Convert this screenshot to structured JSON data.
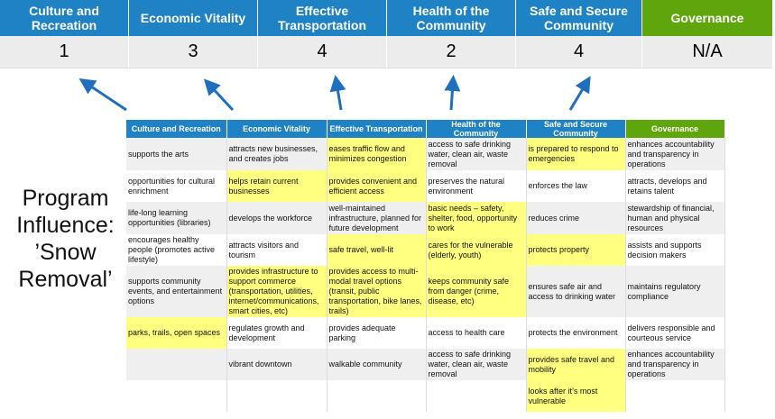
{
  "header": {
    "columns": [
      "Culture and Recreation",
      "Economic Vitality",
      "Effective Transportation",
      "Health of the Community",
      "Safe and Secure Community",
      "Governance"
    ],
    "scores": [
      "1",
      "3",
      "4",
      "2",
      "4",
      "N/A"
    ]
  },
  "title": "Program Influence: ’Snow Removal’",
  "colors": {
    "blue": "#1f82c4",
    "green": "#5fa60c",
    "highlight": "#ffff80",
    "arrow": "#1f6fbf"
  },
  "table": {
    "headers": [
      "Culture and Recreation",
      "Economic Vitality",
      "Effective Transportation",
      "Health of the Community",
      "Safe and Secure Community",
      "Governance"
    ],
    "rows": [
      {
        "cells": [
          "supports the arts",
          "attracts new businesses, and creates jobs",
          "eases traffic flow and minimizes congestion",
          "access to safe drinking water, clean air, waste removal",
          "is prepared to respond to emergencies",
          "enhances accountability and transparency in operations"
        ],
        "highlighted": [
          false,
          false,
          true,
          false,
          true,
          false
        ]
      },
      {
        "cells": [
          "opportunities for cultural enrichment",
          "helps retain current businesses",
          "provides convenient and efficient access",
          "preserves the natural environment",
          "enforces the law",
          "attracts, develops and retains talent"
        ],
        "highlighted": [
          false,
          true,
          true,
          false,
          false,
          false
        ]
      },
      {
        "cells": [
          "life-long learning opportunities (libraries)",
          "develops the workforce",
          "well-maintained infrastructure, planned for future development",
          "basic needs – safety, shelter, food, opportunity to work",
          "reduces crime",
          "stewardship of financial, human and physical resources"
        ],
        "highlighted": [
          false,
          false,
          false,
          true,
          false,
          false
        ]
      },
      {
        "cells": [
          "encourages healthy people (promotes active lifestyle)",
          "attracts visitors and tourism",
          "safe travel, well-lit",
          "cares for the vulnerable (elderly, youth)",
          "protects property",
          "assists and supports decision makers"
        ],
        "highlighted": [
          false,
          false,
          true,
          true,
          true,
          false
        ]
      },
      {
        "cells": [
          "supports community events, and entertainment options",
          "provides infrastructure to support commerce (transportation, utilities, internet/communications, smart cities, etc)",
          "provides access to multi-modal travel options (transit, public transportation, bike lanes, trails)",
          "keeps community safe from danger (crime, disease, etc)",
          "ensures safe air and access to drinking water",
          "maintains regulatory compliance"
        ],
        "highlighted": [
          false,
          true,
          true,
          true,
          false,
          false
        ]
      },
      {
        "cells": [
          "parks, trails, open spaces",
          "regulates growth and development",
          "provides adequate parking",
          "access to health care",
          "protects the environment",
          "delivers responsible and courteous service"
        ],
        "highlighted": [
          true,
          false,
          false,
          false,
          false,
          false
        ]
      },
      {
        "cells": [
          "",
          "vibrant downtown",
          "walkable community",
          "access to safe drinking water, clean air, waste removal",
          "provides safe travel and mobility",
          "enhances accountability and transparency in operations"
        ],
        "highlighted": [
          false,
          false,
          false,
          false,
          true,
          false
        ]
      },
      {
        "cells": [
          "",
          "",
          "",
          "",
          "looks after it’s most vulnerable",
          ""
        ],
        "highlighted": [
          false,
          false,
          false,
          false,
          true,
          false
        ]
      }
    ]
  }
}
